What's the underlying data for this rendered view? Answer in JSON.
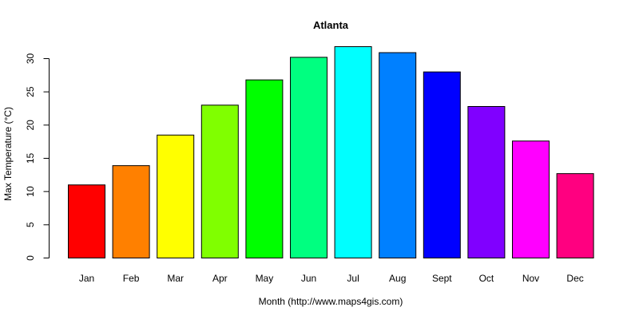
{
  "chart_data": {
    "type": "bar",
    "title": "Atlanta",
    "xlabel": "Month (http://www.maps4gis.com)",
    "ylabel": "Max Temperature (°C)",
    "categories": [
      "Jan",
      "Feb",
      "Mar",
      "Apr",
      "May",
      "Jun",
      "Jul",
      "Aug",
      "Sept",
      "Oct",
      "Nov",
      "Dec"
    ],
    "values": [
      11.0,
      13.9,
      18.5,
      23.0,
      26.8,
      30.2,
      31.8,
      30.9,
      28.0,
      22.8,
      17.6,
      12.7
    ],
    "colors": [
      "#FF0000",
      "#FF8000",
      "#FFFF00",
      "#80FF00",
      "#00FF00",
      "#00FF80",
      "#00FFFF",
      "#0080FF",
      "#0000FF",
      "#8000FF",
      "#FF00FF",
      "#FF0080"
    ],
    "ylim": [
      0,
      30
    ],
    "yticks": [
      "0",
      "5",
      "10",
      "15",
      "20",
      "25",
      "30"
    ],
    "grid": false,
    "legend": "none"
  }
}
